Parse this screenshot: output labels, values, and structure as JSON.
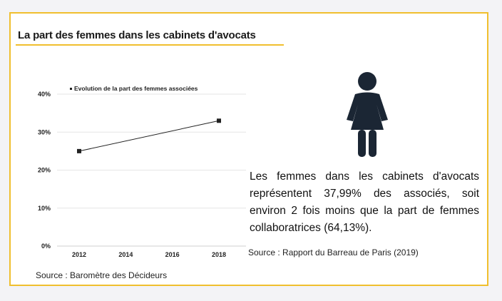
{
  "title": "La part des femmes dans les cabinets d'avocats",
  "chart_data": {
    "type": "line",
    "title": "",
    "legend": "Evolution de la part des femmes associées",
    "x": [
      2012,
      2018
    ],
    "series": [
      {
        "name": "Evolution de la part des femmes associées",
        "values": [
          25,
          33
        ]
      }
    ],
    "x_ticks": [
      "2012",
      "2014",
      "2016",
      "2018"
    ],
    "y_ticks": [
      "0%",
      "10%",
      "20%",
      "30%",
      "40%"
    ],
    "xlim": [
      2012,
      2018
    ],
    "ylim": [
      0,
      40
    ],
    "xlabel": "",
    "ylabel": "",
    "grid": true
  },
  "source_left": "Source : Baromètre des Décideurs",
  "stat_text": "Les femmes dans les cabinets d'avocats représentent 37,99% des associés, soit environ 2 fois moins que la part de femmes collaboratrices (64,13%).",
  "source_right": "Source : Rapport du Barreau de Paris (2019)",
  "colors": {
    "accent": "#f0bf2e",
    "icon": "#1b2634",
    "line": "#222222",
    "grid": "#e6e6e6"
  }
}
